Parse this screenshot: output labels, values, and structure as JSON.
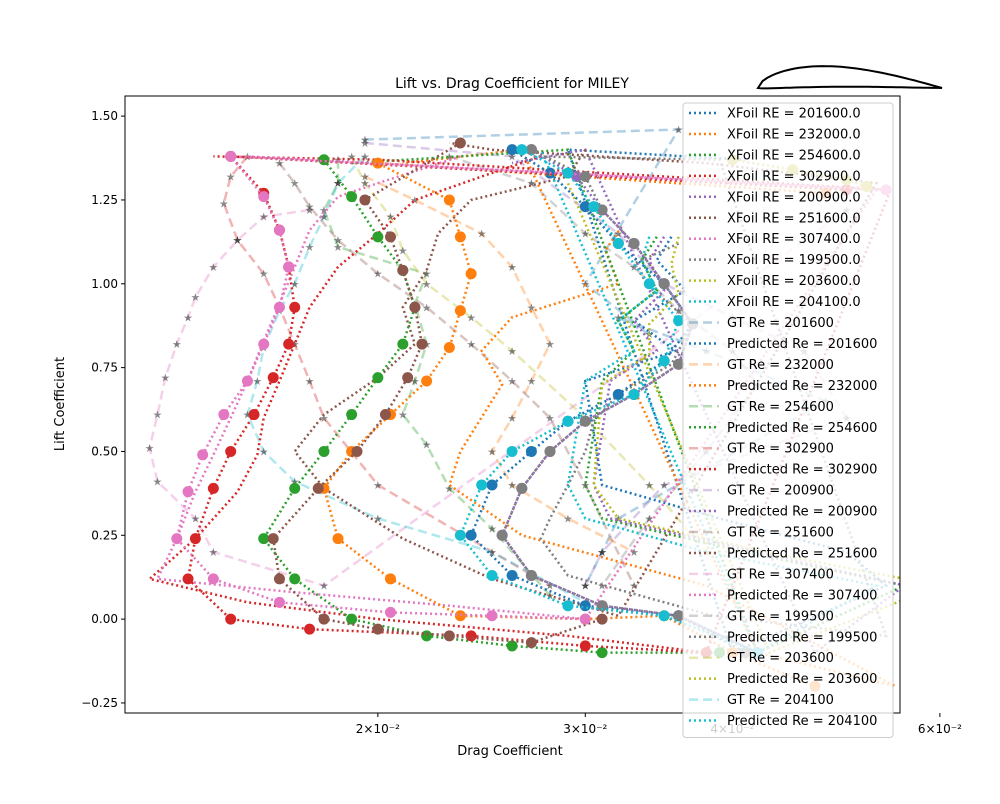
{
  "chart_data": {
    "type": "line",
    "title": "Lift vs. Drag Coefficient for MILEY",
    "xlabel": "Drag Coefficient",
    "ylabel": "Lift Coefficient",
    "xscale": "log",
    "xlim": [
      0.0122,
      0.0555
    ],
    "ylim": [
      -0.28,
      1.56
    ],
    "grid": false,
    "legend_location": "right",
    "x_tick_labels": [
      "2×10⁻²",
      "3×10⁻²",
      "4×10⁻²",
      "6×10⁻²"
    ],
    "x_tick_values": [
      0.02,
      0.03,
      0.04,
      0.06
    ],
    "y_ticks": [
      -0.25,
      0.0,
      0.25,
      0.5,
      0.75,
      1.0,
      1.25,
      1.5
    ],
    "y_tick_labels": [
      "−0.25",
      "0.00",
      "0.25",
      "0.50",
      "0.75",
      "1.00",
      "1.25",
      "1.50"
    ],
    "airfoil_inset": "MILEY airfoil outline",
    "legend": [
      "XFoil RE = 201600.0",
      "XFoil RE = 232000.0",
      "XFoil RE = 254600.0",
      "XFoil RE = 302900.0",
      "XFoil RE = 200900.0",
      "XFoil RE = 251600.0",
      "XFoil RE = 307400.0",
      "XFoil RE = 199500.0",
      "XFoil RE = 203600.0",
      "XFoil RE = 204100.0",
      "GT Re = 201600",
      "Predicted Re = 201600",
      "GT Re = 232000",
      "Predicted Re = 232000",
      "GT Re = 254600",
      "Predicted Re = 254600",
      "GT Re = 302900",
      "Predicted Re = 302900",
      "GT Re = 200900",
      "Predicted Re = 200900",
      "GT Re = 251600",
      "Predicted Re = 251600",
      "GT Re = 307400",
      "Predicted Re = 307400",
      "GT Re = 199500",
      "Predicted Re = 199500",
      "GT Re = 203600",
      "Predicted Re = 203600",
      "GT Re = 204100",
      "Predicted Re = 204100"
    ],
    "colors": [
      "#1f77b4",
      "#ff7f0e",
      "#2ca02c",
      "#d62728",
      "#9467bd",
      "#8c564b",
      "#e377c2",
      "#7f7f7f",
      "#bcbd22",
      "#17becf"
    ],
    "xfoil_series": [
      {
        "re": 201600,
        "x": [
          0.0355,
          0.0345,
          0.0365,
          0.033,
          0.0358,
          0.03,
          0.031,
          0.039,
          0.05,
          0.054,
          0.04,
          0.029,
          0.041
        ],
        "y": [
          1.14,
          1.07,
          0.98,
          0.89,
          0.8,
          0.71,
          0.4,
          0.3,
          0.2,
          0.1,
          -0.1,
          1.4,
          1.37
        ]
      },
      {
        "re": 232000,
        "x": [
          0.0322,
          0.0312,
          0.032,
          0.026,
          0.0245,
          0.0255,
          0.0235,
          0.023,
          0.0265,
          0.038,
          0.055,
          0.042,
          0.0265,
          0.021
        ],
        "y": [
          1.17,
          1.1,
          1.0,
          0.9,
          0.8,
          0.7,
          0.5,
          0.4,
          0.25,
          0.1,
          -0.2,
          -0.1,
          1.4,
          1.36
        ]
      },
      {
        "re": 254600,
        "x": [
          0.0345,
          0.0335,
          0.0345,
          0.032,
          0.033,
          0.031,
          0.03,
          0.031,
          0.041,
          0.056,
          0.042,
          0.029,
          0.019
        ],
        "y": [
          1.14,
          1.07,
          0.98,
          0.89,
          0.8,
          0.71,
          0.4,
          0.3,
          0.2,
          0.1,
          -0.1,
          1.4,
          1.36
        ]
      },
      {
        "re": 302900,
        "x": [
          0.0275,
          0.0245,
          0.0215,
          0.02,
          0.0185,
          0.0175,
          0.017,
          0.0165,
          0.016,
          0.0158,
          0.0152,
          0.014,
          0.0128,
          0.0155,
          0.02,
          0.029,
          0.038,
          0.0545,
          0.02,
          0.0145
        ],
        "y": [
          1.38,
          1.32,
          1.25,
          1.15,
          1.05,
          0.93,
          0.82,
          0.71,
          0.6,
          0.49,
          0.38,
          0.24,
          0.12,
          0.05,
          0.0,
          -0.05,
          -0.1,
          1.28,
          1.37,
          1.38
        ]
      },
      {
        "re": 200900,
        "x": [
          0.035,
          0.034,
          0.035,
          0.033,
          0.0345,
          0.0315,
          0.0305,
          0.0315,
          0.042,
          0.056,
          0.047,
          0.03,
          0.026
        ],
        "y": [
          1.14,
          1.07,
          0.98,
          0.89,
          0.8,
          0.71,
          0.4,
          0.3,
          0.2,
          0.1,
          -0.1,
          1.4,
          1.36
        ]
      },
      {
        "re": 251600,
        "x": [
          0.03,
          0.029,
          0.024,
          0.0225,
          0.022,
          0.021,
          0.0215,
          0.02,
          0.018,
          0.017,
          0.018,
          0.021,
          0.025,
          0.032,
          0.053,
          0.038,
          0.025,
          0.023
        ],
        "y": [
          1.4,
          1.32,
          1.25,
          1.15,
          1.04,
          0.93,
          0.82,
          0.72,
          0.61,
          0.5,
          0.39,
          0.24,
          0.12,
          0.01,
          1.3,
          1.36,
          1.4,
          1.42
        ]
      },
      {
        "re": 307400,
        "x": [
          0.0235,
          0.02,
          0.0185,
          0.0175,
          0.017,
          0.0165,
          0.016,
          0.0155,
          0.015,
          0.0145,
          0.014,
          0.0135,
          0.013,
          0.017,
          0.023,
          0.03,
          0.053,
          0.0155
        ],
        "y": [
          1.38,
          1.3,
          1.26,
          1.16,
          1.05,
          0.94,
          0.83,
          0.71,
          0.6,
          0.49,
          0.38,
          0.24,
          0.12,
          0.08,
          0.04,
          0.0,
          1.28,
          1.38
        ]
      },
      {
        "re": 199500,
        "x": [
          0.036,
          0.033,
          0.034,
          0.037,
          0.0355,
          0.032,
          0.0305,
          0.03,
          0.029,
          0.028,
          0.0275,
          0.029,
          0.0385,
          0.054,
          0.039,
          0.027
        ],
        "y": [
          1.12,
          1.06,
          0.99,
          0.88,
          0.76,
          0.67,
          0.59,
          0.5,
          0.4,
          0.3,
          0.24,
          0.13,
          0.01,
          -0.05,
          1.37,
          1.38
        ]
      },
      {
        "re": 203600,
        "x": [
          0.036,
          0.0355,
          0.036,
          0.034,
          0.034,
          0.031,
          0.0305,
          0.032,
          0.044,
          0.06,
          0.043,
          0.029
        ],
        "y": [
          1.14,
          1.06,
          0.97,
          0.88,
          0.79,
          0.7,
          0.4,
          0.3,
          0.19,
          0.1,
          -0.1,
          1.3
        ]
      },
      {
        "re": 204100,
        "x": [
          0.034,
          0.0335,
          0.0345,
          0.032,
          0.033,
          0.03,
          0.029,
          0.03,
          0.038,
          0.053,
          0.042,
          0.0275
        ],
        "y": [
          1.14,
          1.07,
          0.98,
          0.89,
          0.8,
          0.71,
          0.4,
          0.3,
          0.2,
          0.1,
          -0.1,
          1.4
        ]
      }
    ],
    "gt_series": [
      {
        "re": 201600,
        "x": [
          0.0195,
          0.036,
          0.03,
          0.034,
          0.032,
          0.038,
          0.048,
          0.032,
          0.031,
          0.03
        ],
        "y": [
          1.43,
          1.46,
          1.0,
          0.85,
          0.9,
          0.8,
          0.65,
          0.3,
          0.2,
          0.1
        ]
      },
      {
        "re": 232000,
        "x": [
          0.0195,
          0.0215,
          0.0245,
          0.026,
          0.027,
          0.028,
          0.027,
          0.026,
          0.025,
          0.026,
          0.029,
          0.033
        ],
        "y": [
          1.32,
          1.25,
          1.15,
          1.05,
          0.93,
          0.82,
          0.71,
          0.6,
          0.5,
          0.4,
          0.3,
          0.2
        ]
      },
      {
        "re": 254600,
        "x": [
          0.0185,
          0.0185,
          0.018,
          0.0185,
          0.022,
          0.0215,
          0.022,
          0.0215,
          0.021,
          0.022,
          0.023,
          0.025,
          0.028
        ],
        "y": [
          1.37,
          1.3,
          1.22,
          1.11,
          1.03,
          0.94,
          0.82,
          0.71,
          0.61,
          0.52,
          0.39,
          0.27,
          0.07
        ]
      },
      {
        "re": 302900,
        "x": [
          0.0155,
          0.015,
          0.0148,
          0.0152,
          0.016,
          0.0165,
          0.017,
          0.0175,
          0.018,
          0.02,
          0.028
        ],
        "y": [
          1.38,
          1.32,
          1.24,
          1.13,
          1.03,
          0.93,
          0.82,
          0.71,
          0.6,
          0.4,
          0.1
        ]
      },
      {
        "re": 200900,
        "x": [
          0.0195,
          0.026,
          0.032,
          0.035,
          0.04,
          0.046,
          0.05,
          0.035,
          0.031,
          0.03
        ],
        "y": [
          1.42,
          1.38,
          1.15,
          1.0,
          0.9,
          0.8,
          0.6,
          0.4,
          0.2,
          0.1
        ]
      },
      {
        "re": 251600,
        "x": [
          0.0165,
          0.017,
          0.0175,
          0.0185,
          0.02,
          0.022,
          0.024,
          0.026,
          0.028,
          0.03,
          0.033
        ],
        "y": [
          1.36,
          1.3,
          1.23,
          1.13,
          1.03,
          0.93,
          0.82,
          0.71,
          0.6,
          0.4,
          0.1
        ]
      },
      {
        "re": 307400,
        "x": [
          0.0175,
          0.016,
          0.0152,
          0.0145,
          0.014,
          0.0138,
          0.0135,
          0.0132,
          0.013,
          0.0128,
          0.013,
          0.014,
          0.0145,
          0.018,
          0.05
        ],
        "y": [
          1.22,
          1.2,
          1.13,
          1.05,
          0.96,
          0.9,
          0.82,
          0.72,
          0.61,
          0.51,
          0.41,
          0.3,
          0.2,
          0.1,
          1.22
        ]
      },
      {
        "re": 199500,
        "x": [
          0.023,
          0.027,
          0.03,
          0.033,
          0.036,
          0.04,
          0.042,
          0.038,
          0.034,
          0.031
        ],
        "y": [
          1.38,
          1.3,
          1.15,
          1.05,
          0.92,
          0.8,
          0.7,
          0.5,
          0.3,
          0.1
        ]
      },
      {
        "re": 203600,
        "x": [
          0.019,
          0.0195,
          0.0205,
          0.021,
          0.022,
          0.024,
          0.026,
          0.03,
          0.034,
          0.038
        ],
        "y": [
          1.38,
          1.3,
          1.2,
          1.1,
          1.0,
          0.9,
          0.8,
          0.6,
          0.4,
          0.2
        ]
      },
      {
        "re": 204100,
        "x": [
          0.0195,
          0.0185,
          0.018,
          0.0175,
          0.017,
          0.0165,
          0.016,
          0.0158,
          0.0155,
          0.016,
          0.017,
          0.02,
          0.025,
          0.03
        ],
        "y": [
          1.38,
          1.3,
          1.2,
          1.11,
          1.0,
          0.92,
          0.81,
          0.71,
          0.61,
          0.5,
          0.41,
          0.3,
          0.2,
          0.05
        ]
      }
    ],
    "predicted_series": [
      {
        "re": 201600,
        "x": [
          0.026,
          0.028,
          0.03,
          0.032,
          0.035,
          0.037,
          0.035,
          0.032,
          0.029,
          0.027,
          0.025,
          0.024,
          0.026,
          0.03,
          0.036,
          0.042
        ],
        "y": [
          1.4,
          1.33,
          1.23,
          1.12,
          1.0,
          0.88,
          0.77,
          0.67,
          0.59,
          0.5,
          0.4,
          0.25,
          0.13,
          0.04,
          0.01,
          -0.1
        ]
      },
      {
        "re": 232000,
        "x": [
          0.048,
          0.02,
          0.023,
          0.0235,
          0.024,
          0.0235,
          0.023,
          0.022,
          0.0205,
          0.019,
          0.018,
          0.0185,
          0.0205,
          0.0235,
          0.03,
          0.035,
          0.04,
          0.047
        ],
        "y": [
          1.27,
          1.36,
          1.25,
          1.14,
          1.03,
          0.92,
          0.81,
          0.71,
          0.61,
          0.5,
          0.39,
          0.24,
          0.12,
          0.01,
          0.0,
          0.01,
          -0.1,
          -0.2
        ]
      },
      {
        "re": 254600,
        "x": [
          0.018,
          0.019,
          0.02,
          0.021,
          0.0215,
          0.021,
          0.02,
          0.019,
          0.018,
          0.017,
          0.016,
          0.017,
          0.019,
          0.022,
          0.026,
          0.031,
          0.039
        ],
        "y": [
          1.37,
          1.26,
          1.14,
          1.04,
          0.93,
          0.82,
          0.72,
          0.61,
          0.5,
          0.39,
          0.24,
          0.12,
          0.0,
          -0.05,
          -0.08,
          -0.1,
          -0.1
        ]
      },
      {
        "re": 302900,
        "x": [
          0.05,
          0.015,
          0.016,
          0.0165,
          0.0168,
          0.017,
          0.0168,
          0.0163,
          0.0157,
          0.015,
          0.0145,
          0.014,
          0.0138,
          0.015,
          0.0175,
          0.024,
          0.03,
          0.038
        ],
        "y": [
          1.28,
          1.38,
          1.27,
          1.16,
          1.05,
          0.93,
          0.82,
          0.72,
          0.61,
          0.5,
          0.39,
          0.24,
          0.12,
          0.0,
          -0.03,
          -0.05,
          -0.08,
          -0.1
        ]
      },
      {
        "re": 200900,
        "x": [
          0.027,
          0.0295,
          0.031,
          0.033,
          0.035,
          0.037,
          0.036,
          0.033,
          0.03,
          0.028,
          0.0265,
          0.0255,
          0.027,
          0.031,
          0.036,
          0.042
        ],
        "y": [
          1.4,
          1.32,
          1.22,
          1.12,
          1.0,
          0.88,
          0.76,
          0.67,
          0.59,
          0.5,
          0.39,
          0.25,
          0.13,
          0.04,
          0.01,
          -0.1
        ]
      },
      {
        "re": 251600,
        "x": [
          0.0235,
          0.0195,
          0.0205,
          0.021,
          0.0215,
          0.0218,
          0.0212,
          0.0203,
          0.0192,
          0.0178,
          0.0163,
          0.0165,
          0.018,
          0.02,
          0.023,
          0.027,
          0.031
        ],
        "y": [
          1.42,
          1.25,
          1.14,
          1.04,
          0.93,
          0.82,
          0.72,
          0.61,
          0.5,
          0.39,
          0.24,
          0.12,
          0.0,
          -0.03,
          -0.05,
          -0.07,
          0.0
        ]
      },
      {
        "re": 307400,
        "x": [
          0.054,
          0.015,
          0.016,
          0.0165,
          0.0168,
          0.0165,
          0.016,
          0.0155,
          0.0148,
          0.0142,
          0.0138,
          0.0135,
          0.0145,
          0.0165,
          0.0205,
          0.025,
          0.03
        ],
        "y": [
          1.28,
          1.38,
          1.26,
          1.16,
          1.05,
          0.93,
          0.82,
          0.71,
          0.61,
          0.49,
          0.38,
          0.24,
          0.12,
          0.05,
          0.02,
          0.01,
          0.0
        ]
      },
      {
        "re": 199500,
        "x": [
          0.027,
          0.03,
          0.031,
          0.033,
          0.035,
          0.037,
          0.036,
          0.033,
          0.03,
          0.028,
          0.0265,
          0.0255,
          0.027,
          0.031,
          0.036,
          0.041
        ],
        "y": [
          1.4,
          1.32,
          1.22,
          1.12,
          1.0,
          0.88,
          0.76,
          0.67,
          0.59,
          0.5,
          0.39,
          0.25,
          0.13,
          0.04,
          0.01,
          -0.1
        ]
      },
      {
        "re": 203600,
        "x": [
          0.04,
          0.045,
          0.05,
          0.052
        ],
        "y": [
          1.37,
          1.34,
          1.31,
          1.29
        ]
      },
      {
        "re": 204100,
        "x": [
          0.0265,
          0.029,
          0.0305,
          0.032,
          0.034,
          0.036,
          0.035,
          0.033,
          0.029,
          0.026,
          0.0245,
          0.0235,
          0.025,
          0.029,
          0.035,
          0.042
        ],
        "y": [
          1.4,
          1.33,
          1.23,
          1.12,
          1.0,
          0.89,
          0.77,
          0.67,
          0.59,
          0.5,
          0.4,
          0.25,
          0.13,
          0.04,
          0.01,
          -0.1
        ]
      }
    ]
  }
}
